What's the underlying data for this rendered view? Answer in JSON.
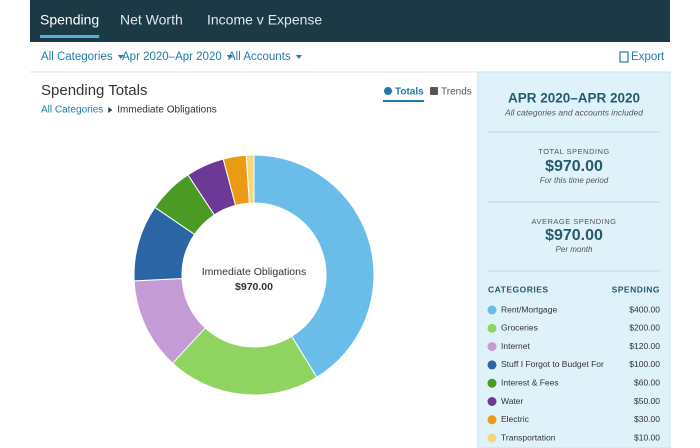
{
  "nav": {
    "tabs": [
      "Spending",
      "Net Worth",
      "Income v Expense"
    ],
    "active": 0
  },
  "filters": {
    "items": [
      "All Categories",
      "Apr 2020–Apr 2020",
      "All Accounts"
    ],
    "export": "Export"
  },
  "panel": {
    "title": "Spending Totals",
    "breadcrumb": [
      "All Categories",
      "Immediate Obligations"
    ],
    "views": [
      "Totals",
      "Trends"
    ],
    "active_view": 0
  },
  "summary": {
    "period": "APR 2020–APR 2020",
    "period_note": "All categories and accounts included",
    "total_label": "TOTAL SPENDING",
    "total_value": "$970.00",
    "total_note": "For this time period",
    "average_label": "AVERAGE SPENDING",
    "average_value": "$970.00",
    "average_note": "Per month",
    "categories_header": "CATEGORIES",
    "spending_header": "SPENDING"
  },
  "chart_data": {
    "type": "pie",
    "center_label": "Immediate Obligations",
    "center_value": "$970.00",
    "categories": [
      "Rent/Mortgage",
      "Groceries",
      "Internet",
      "Stuff I Forgot to Budget For",
      "Interest & Fees",
      "Water",
      "Electric",
      "Transportation"
    ],
    "values": [
      400,
      200,
      120,
      100,
      60,
      50,
      30,
      10
    ],
    "value_labels": [
      "$400.00",
      "$200.00",
      "$120.00",
      "$100.00",
      "$60.00",
      "$50.00",
      "$30.00",
      "$10.00"
    ],
    "colors": [
      "#6bbde9",
      "#8fd460",
      "#c59bd6",
      "#2b65a6",
      "#4b9a23",
      "#6c3a96",
      "#eb9a14",
      "#f5d77a"
    ]
  }
}
